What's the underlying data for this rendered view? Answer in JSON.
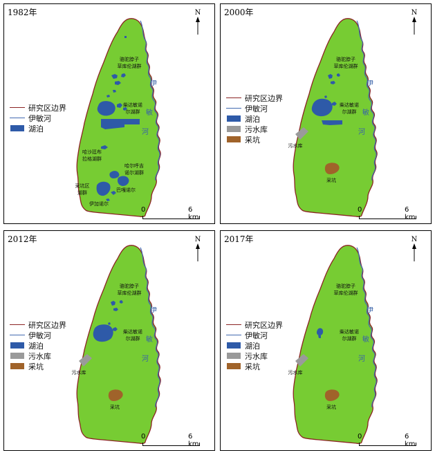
{
  "colors": {
    "boundary": "#8b2323",
    "river": "#4169b0",
    "study_area": "#77cc33",
    "lake": "#2e5aa8",
    "reservoir": "#9a9a9a",
    "pit": "#a0632a"
  },
  "north_label": "N",
  "scale": {
    "zero": "0",
    "distance": "6 km"
  },
  "legend_items": {
    "boundary": "研究区边界",
    "river": "伊敏河",
    "lake": "湖泊",
    "reservoir": "污水库",
    "pit": "采坑"
  },
  "river_chars": [
    "伊",
    "敏",
    "河"
  ],
  "panels": [
    {
      "year": "1982年",
      "labels": {
        "luotuo_1": "骆驼脖子",
        "luotuo_2": "草库伦湖群",
        "chai_1": "柴达敏诺",
        "chai_2": "尔湖群",
        "hasha_1": "哈沙廷布",
        "hasha_2": "拉格湖群",
        "haer_1": "哈尔呼吉",
        "haer_2": "诺尔湖群",
        "caikeng_1": "采坑区",
        "caikeng_2": "湖群",
        "bagan": "巴嘎诺尔",
        "yijia": "伊加诺尔"
      }
    },
    {
      "year": "2000年",
      "labels": {
        "luotuo_1": "骆驼脖子",
        "luotuo_2": "草库伦湖群",
        "chai_1": "柴达敏诺",
        "chai_2": "尔湖群",
        "reservoir": "污水库",
        "pit": "采坑"
      }
    },
    {
      "year": "2012年",
      "labels": {
        "luotuo_1": "骆驼脖子",
        "luotuo_2": "草库伦湖群",
        "chai_1": "柴达敏诺",
        "chai_2": "尔湖群",
        "reservoir": "污水库",
        "pit": "采坑"
      }
    },
    {
      "year": "2017年",
      "labels": {
        "luotuo_1": "骆驼脖子",
        "luotuo_2": "草库伦湖群",
        "chai_1": "柴达敏诺",
        "chai_2": "尔湖群",
        "reservoir": "污水库",
        "pit": "采坑"
      }
    }
  ]
}
